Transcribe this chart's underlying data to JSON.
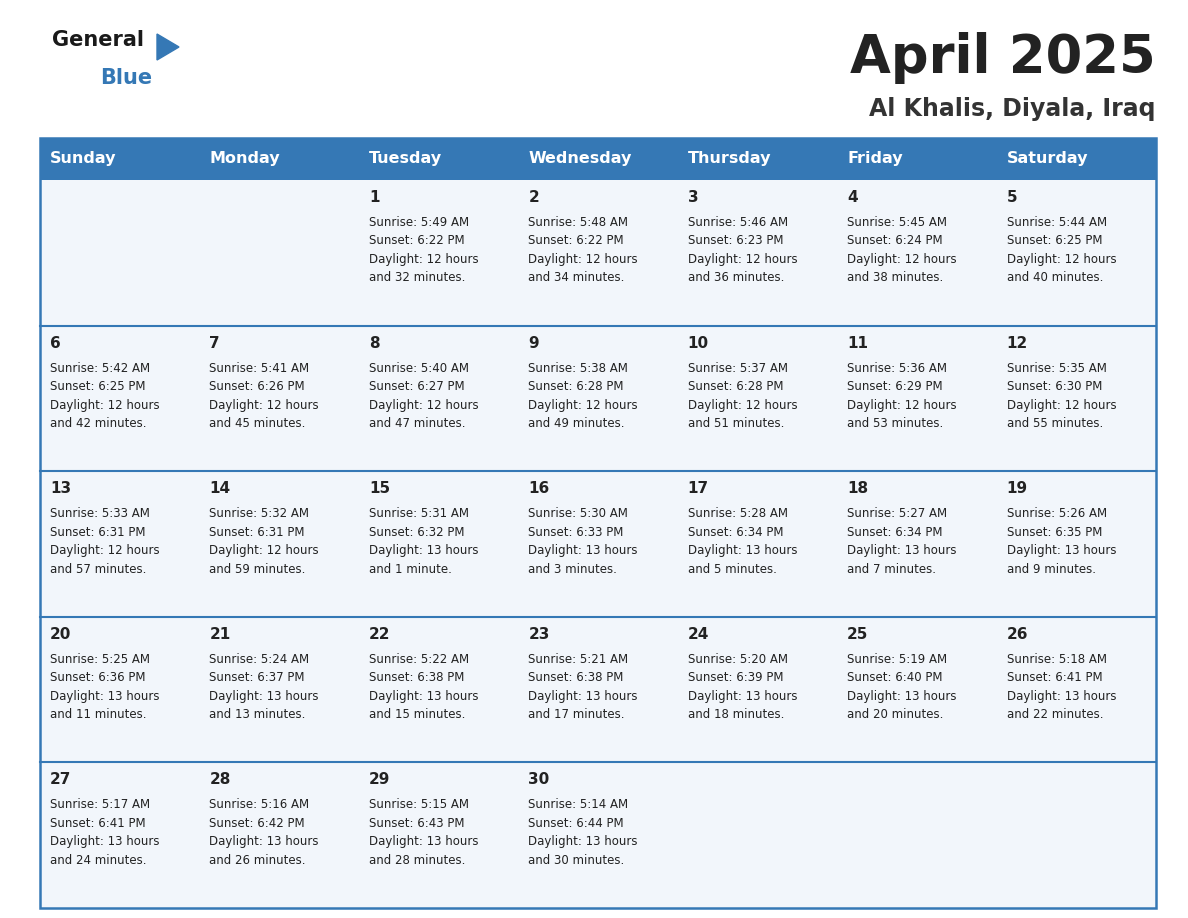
{
  "title": "April 2025",
  "subtitle": "Al Khalis, Diyala, Iraq",
  "header_color": "#3578b5",
  "header_text_color": "#ffffff",
  "border_color": "#3578b5",
  "cell_bg_color": "#f2f6fb",
  "text_color": "#222222",
  "days_of_week": [
    "Sunday",
    "Monday",
    "Tuesday",
    "Wednesday",
    "Thursday",
    "Friday",
    "Saturday"
  ],
  "weeks": [
    [
      {
        "day": "",
        "lines": []
      },
      {
        "day": "",
        "lines": []
      },
      {
        "day": "1",
        "lines": [
          "Sunrise: 5:49 AM",
          "Sunset: 6:22 PM",
          "Daylight: 12 hours",
          "and 32 minutes."
        ]
      },
      {
        "day": "2",
        "lines": [
          "Sunrise: 5:48 AM",
          "Sunset: 6:22 PM",
          "Daylight: 12 hours",
          "and 34 minutes."
        ]
      },
      {
        "day": "3",
        "lines": [
          "Sunrise: 5:46 AM",
          "Sunset: 6:23 PM",
          "Daylight: 12 hours",
          "and 36 minutes."
        ]
      },
      {
        "day": "4",
        "lines": [
          "Sunrise: 5:45 AM",
          "Sunset: 6:24 PM",
          "Daylight: 12 hours",
          "and 38 minutes."
        ]
      },
      {
        "day": "5",
        "lines": [
          "Sunrise: 5:44 AM",
          "Sunset: 6:25 PM",
          "Daylight: 12 hours",
          "and 40 minutes."
        ]
      }
    ],
    [
      {
        "day": "6",
        "lines": [
          "Sunrise: 5:42 AM",
          "Sunset: 6:25 PM",
          "Daylight: 12 hours",
          "and 42 minutes."
        ]
      },
      {
        "day": "7",
        "lines": [
          "Sunrise: 5:41 AM",
          "Sunset: 6:26 PM",
          "Daylight: 12 hours",
          "and 45 minutes."
        ]
      },
      {
        "day": "8",
        "lines": [
          "Sunrise: 5:40 AM",
          "Sunset: 6:27 PM",
          "Daylight: 12 hours",
          "and 47 minutes."
        ]
      },
      {
        "day": "9",
        "lines": [
          "Sunrise: 5:38 AM",
          "Sunset: 6:28 PM",
          "Daylight: 12 hours",
          "and 49 minutes."
        ]
      },
      {
        "day": "10",
        "lines": [
          "Sunrise: 5:37 AM",
          "Sunset: 6:28 PM",
          "Daylight: 12 hours",
          "and 51 minutes."
        ]
      },
      {
        "day": "11",
        "lines": [
          "Sunrise: 5:36 AM",
          "Sunset: 6:29 PM",
          "Daylight: 12 hours",
          "and 53 minutes."
        ]
      },
      {
        "day": "12",
        "lines": [
          "Sunrise: 5:35 AM",
          "Sunset: 6:30 PM",
          "Daylight: 12 hours",
          "and 55 minutes."
        ]
      }
    ],
    [
      {
        "day": "13",
        "lines": [
          "Sunrise: 5:33 AM",
          "Sunset: 6:31 PM",
          "Daylight: 12 hours",
          "and 57 minutes."
        ]
      },
      {
        "day": "14",
        "lines": [
          "Sunrise: 5:32 AM",
          "Sunset: 6:31 PM",
          "Daylight: 12 hours",
          "and 59 minutes."
        ]
      },
      {
        "day": "15",
        "lines": [
          "Sunrise: 5:31 AM",
          "Sunset: 6:32 PM",
          "Daylight: 13 hours",
          "and 1 minute."
        ]
      },
      {
        "day": "16",
        "lines": [
          "Sunrise: 5:30 AM",
          "Sunset: 6:33 PM",
          "Daylight: 13 hours",
          "and 3 minutes."
        ]
      },
      {
        "day": "17",
        "lines": [
          "Sunrise: 5:28 AM",
          "Sunset: 6:34 PM",
          "Daylight: 13 hours",
          "and 5 minutes."
        ]
      },
      {
        "day": "18",
        "lines": [
          "Sunrise: 5:27 AM",
          "Sunset: 6:34 PM",
          "Daylight: 13 hours",
          "and 7 minutes."
        ]
      },
      {
        "day": "19",
        "lines": [
          "Sunrise: 5:26 AM",
          "Sunset: 6:35 PM",
          "Daylight: 13 hours",
          "and 9 minutes."
        ]
      }
    ],
    [
      {
        "day": "20",
        "lines": [
          "Sunrise: 5:25 AM",
          "Sunset: 6:36 PM",
          "Daylight: 13 hours",
          "and 11 minutes."
        ]
      },
      {
        "day": "21",
        "lines": [
          "Sunrise: 5:24 AM",
          "Sunset: 6:37 PM",
          "Daylight: 13 hours",
          "and 13 minutes."
        ]
      },
      {
        "day": "22",
        "lines": [
          "Sunrise: 5:22 AM",
          "Sunset: 6:38 PM",
          "Daylight: 13 hours",
          "and 15 minutes."
        ]
      },
      {
        "day": "23",
        "lines": [
          "Sunrise: 5:21 AM",
          "Sunset: 6:38 PM",
          "Daylight: 13 hours",
          "and 17 minutes."
        ]
      },
      {
        "day": "24",
        "lines": [
          "Sunrise: 5:20 AM",
          "Sunset: 6:39 PM",
          "Daylight: 13 hours",
          "and 18 minutes."
        ]
      },
      {
        "day": "25",
        "lines": [
          "Sunrise: 5:19 AM",
          "Sunset: 6:40 PM",
          "Daylight: 13 hours",
          "and 20 minutes."
        ]
      },
      {
        "day": "26",
        "lines": [
          "Sunrise: 5:18 AM",
          "Sunset: 6:41 PM",
          "Daylight: 13 hours",
          "and 22 minutes."
        ]
      }
    ],
    [
      {
        "day": "27",
        "lines": [
          "Sunrise: 5:17 AM",
          "Sunset: 6:41 PM",
          "Daylight: 13 hours",
          "and 24 minutes."
        ]
      },
      {
        "day": "28",
        "lines": [
          "Sunrise: 5:16 AM",
          "Sunset: 6:42 PM",
          "Daylight: 13 hours",
          "and 26 minutes."
        ]
      },
      {
        "day": "29",
        "lines": [
          "Sunrise: 5:15 AM",
          "Sunset: 6:43 PM",
          "Daylight: 13 hours",
          "and 28 minutes."
        ]
      },
      {
        "day": "30",
        "lines": [
          "Sunrise: 5:14 AM",
          "Sunset: 6:44 PM",
          "Daylight: 13 hours",
          "and 30 minutes."
        ]
      },
      {
        "day": "",
        "lines": []
      },
      {
        "day": "",
        "lines": []
      },
      {
        "day": "",
        "lines": []
      }
    ]
  ],
  "logo_general_color": "#1a1a1a",
  "logo_blue_color": "#3578b5",
  "logo_triangle_color": "#3578b5",
  "title_fontsize": 38,
  "subtitle_fontsize": 17,
  "header_fontsize": 11.5,
  "day_num_fontsize": 11,
  "cell_text_fontsize": 8.5
}
